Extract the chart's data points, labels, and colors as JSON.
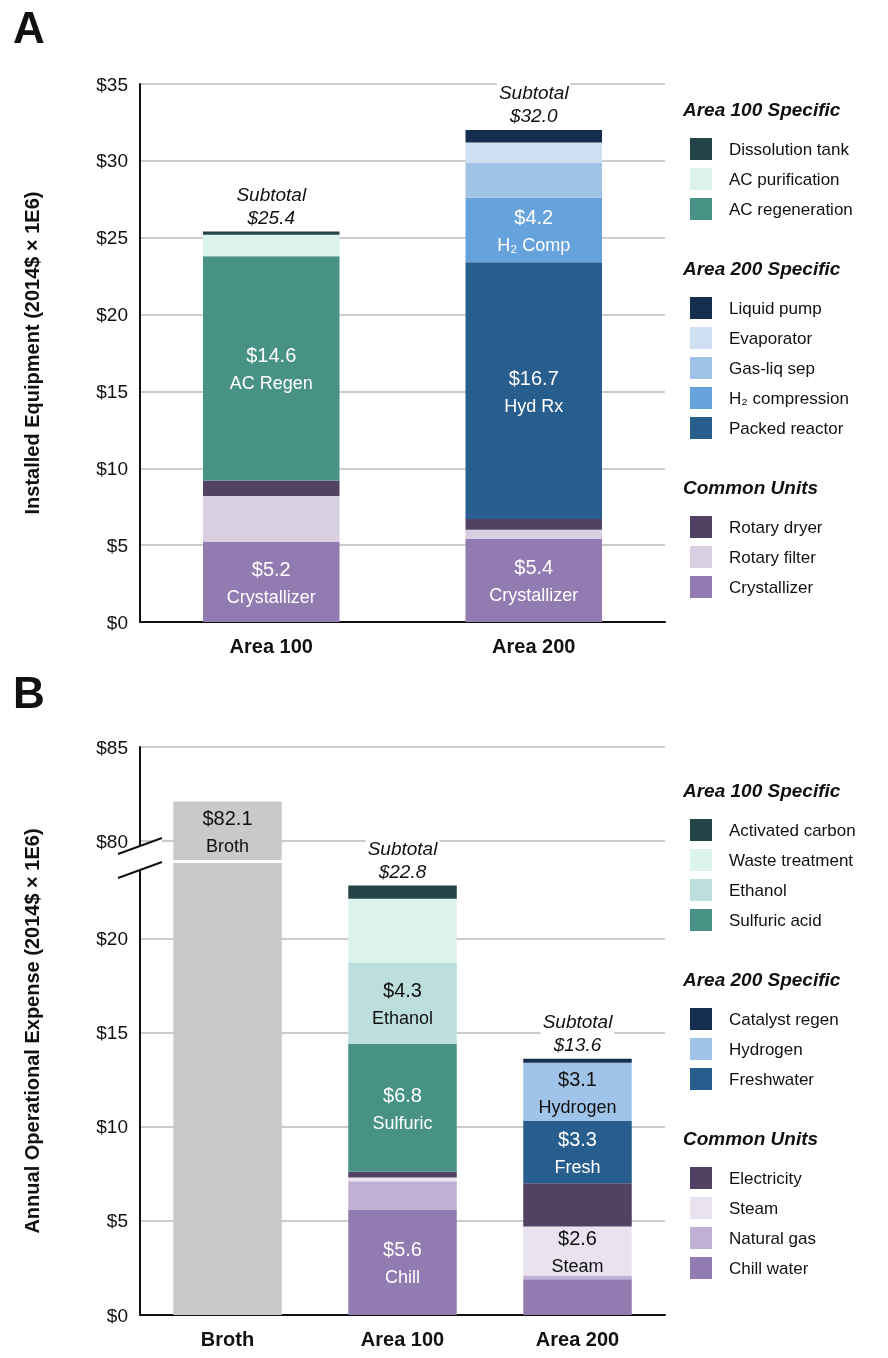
{
  "chart_data": [
    {
      "type": "bar",
      "title": "A",
      "ylabel": "Installed Equipment (2014$ × 1E6)",
      "categories": [
        "Area 100",
        "Area 200"
      ],
      "stacked": true,
      "grid": "y",
      "legend": "right",
      "ylim": [
        0,
        35
      ],
      "yticks": [
        {
          "value": 0,
          "label": "$0"
        },
        {
          "value": 5,
          "label": "$5"
        },
        {
          "value": 10,
          "label": "$10"
        },
        {
          "value": 15,
          "label": "$15"
        },
        {
          "value": 20,
          "label": "$20"
        },
        {
          "value": 25,
          "label": "$25"
        },
        {
          "value": 30,
          "label": "$30"
        },
        {
          "value": 35,
          "label": "$35"
        }
      ],
      "annotations": [
        "Area 100 Specific",
        "Area 200 Specific",
        "Common Units"
      ],
      "totals": [
        "Subtotal\n$25.4",
        "Subtotal\n$32.0"
      ],
      "series": [
        {
          "name": "Crystallizer",
          "color": "#927bb0",
          "values": [
            5.2,
            5.4
          ],
          "value_labels": [
            "$5.2\nCrystallizer",
            "$5.4\nCrystallizer"
          ]
        },
        {
          "name": "Rotary filter",
          "color": "#d8cfe3",
          "values": [
            3.0,
            0.6
          ]
        },
        {
          "name": "Rotary dryer",
          "color": "#514263",
          "values": [
            1.0,
            0.7
          ]
        },
        {
          "name": "Packed reactor",
          "color": "#285e8d",
          "values": [
            null,
            16.7
          ],
          "value_labels": [
            null,
            "$16.7\nHyd Rx"
          ]
        },
        {
          "name": "H₂ compression",
          "color": "#66a3dc",
          "values": [
            null,
            4.2
          ],
          "value_labels": [
            null,
            "$4.2\nH₂ Comp"
          ]
        },
        {
          "name": "Gas-liq sep",
          "color": "#a0c3e8",
          "values": [
            null,
            2.3
          ]
        },
        {
          "name": "Evaporator",
          "color": "#cfe0f2",
          "values": [
            null,
            1.3
          ]
        },
        {
          "name": "Liquid pump",
          "color": "#152e4f",
          "values": [
            null,
            0.8
          ]
        },
        {
          "name": "AC regeneration",
          "color": "#479284",
          "values": [
            14.6,
            null
          ],
          "value_labels": [
            "$14.6\nAC Regen",
            null
          ]
        },
        {
          "name": "AC purification",
          "color": "#dcf2ec",
          "values": [
            1.4,
            null
          ]
        },
        {
          "name": "Dissolution tank",
          "color": "#234347",
          "values": [
            0.2,
            null
          ]
        }
      ]
    },
    {
      "type": "bar",
      "title": "B",
      "categories": [
        null,
        null,
        null
      ],
      "stacked": true,
      "grid": "y",
      "tick_labels": "y",
      "ylim": [
        79,
        85
      ],
      "yticks": [
        {
          "value": 80,
          "label": "$80"
        },
        {
          "value": 85,
          "label": "$85"
        }
      ],
      "series": [
        {
          "color": "#c9c9c9",
          "values": [
            82.1,
            null,
            null
          ],
          "value_labels": [
            "$82.1\nBroth",
            null,
            null
          ]
        }
      ]
    },
    {
      "type": "bar",
      "ylabel": "Annual Operational Expense (2014$ × 1E6)",
      "categories": [
        "Broth",
        "Area 100",
        "Area 200"
      ],
      "stacked": true,
      "grid": "y",
      "legend": "right",
      "ylim": [
        0,
        24
      ],
      "yticks": [
        {
          "value": 0,
          "label": "$0"
        },
        {
          "value": 5,
          "label": "$5"
        },
        {
          "value": 10,
          "label": "$10"
        },
        {
          "value": 15,
          "label": "$15"
        },
        {
          "value": 20,
          "label": "$20"
        }
      ],
      "annotations": [
        "Area 100 Specific",
        "Area 200 Specific",
        "Common Units"
      ],
      "totals": [
        null,
        "Subtotal\n$22.8",
        "Subtotal\n$13.6"
      ],
      "series": [
        {
          "color": "#c9c9c9",
          "values": [
            24,
            null,
            null
          ]
        },
        {
          "name": "Chill water",
          "color": "#927bb0",
          "values": [
            null,
            5.6,
            1.9
          ],
          "value_labels": [
            null,
            "$5.6\nChill",
            null
          ]
        },
        {
          "name": "Natural gas",
          "color": "#c0b0d3",
          "values": [
            null,
            1.5,
            0.2
          ]
        },
        {
          "name": "Steam",
          "color": "#e8e3ef",
          "values": [
            null,
            0.2,
            2.6
          ],
          "value_labels": [
            null,
            null,
            "$2.6\nSteam"
          ]
        },
        {
          "name": "Electricity",
          "color": "#514263",
          "values": [
            null,
            0.3,
            2.3
          ]
        },
        {
          "name": "Freshwater",
          "color": "#285e8d",
          "values": [
            null,
            null,
            3.3
          ],
          "value_labels": [
            null,
            null,
            "$3.3\nFresh"
          ]
        },
        {
          "name": "Hydrogen",
          "color": "#a0c3e8",
          "values": [
            null,
            null,
            3.1
          ],
          "value_labels": [
            null,
            null,
            "$3.1\nHydrogen"
          ]
        },
        {
          "name": "Catalyst regen",
          "color": "#152e4f",
          "values": [
            null,
            null,
            0.2
          ]
        },
        {
          "name": "Sulfuric acid",
          "color": "#479284",
          "values": [
            null,
            6.8,
            null
          ],
          "value_labels": [
            null,
            "$6.8\nSulfuric",
            null
          ]
        },
        {
          "name": "Ethanol",
          "color": "#bcdedc",
          "values": [
            null,
            4.3,
            null
          ],
          "value_labels": [
            null,
            "$4.3\nEthanol",
            null
          ]
        },
        {
          "name": "Waste treatment",
          "color": "#dcf2ec",
          "values": [
            null,
            3.4,
            null
          ]
        },
        {
          "name": "Activated carbon",
          "color": "#234347",
          "values": [
            null,
            0.7,
            null
          ]
        }
      ]
    }
  ]
}
